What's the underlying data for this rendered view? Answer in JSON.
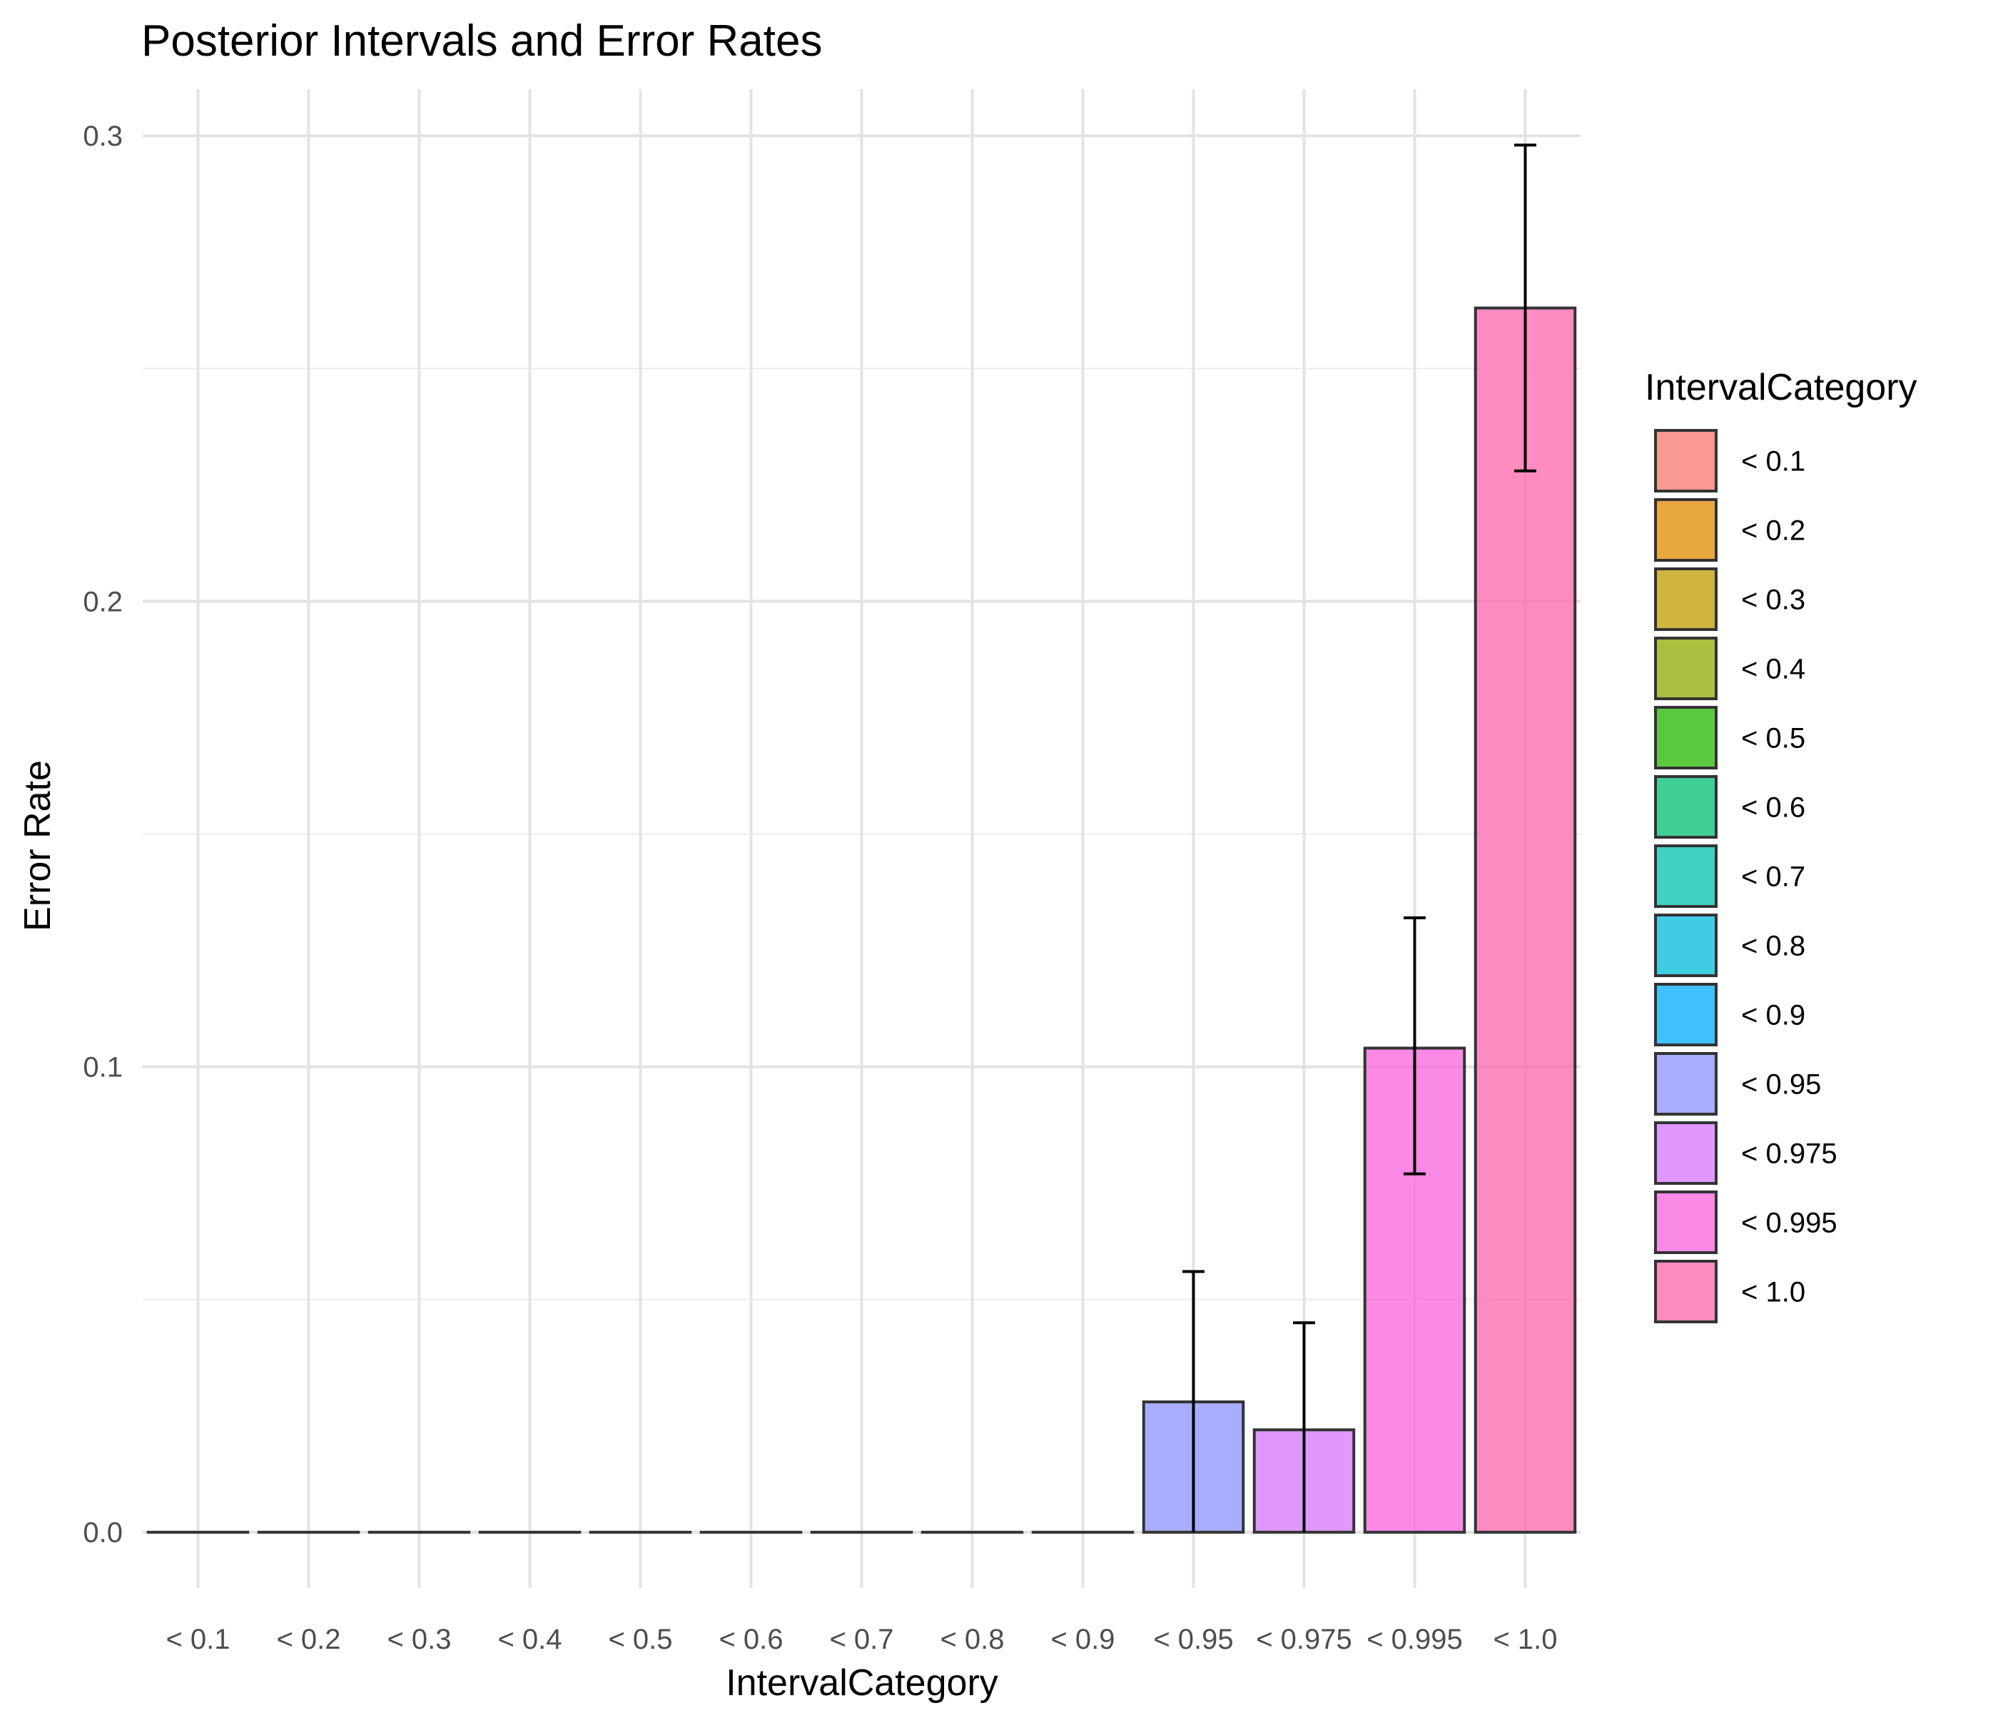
{
  "chart_data": {
    "type": "bar",
    "title": "Posterior Intervals and Error Rates",
    "xlabel": "IntervalCategory",
    "ylabel": "Error Rate",
    "categories": [
      "< 0.1",
      "< 0.2",
      "< 0.3",
      "< 0.4",
      "< 0.5",
      "< 0.6",
      "< 0.7",
      "< 0.8",
      "< 0.9",
      "< 0.95",
      "< 0.975",
      "< 0.995",
      "< 1.0"
    ],
    "values": [
      0,
      0,
      0,
      0,
      0,
      0,
      0,
      0,
      0,
      0.028,
      0.022,
      0.104,
      0.263
    ],
    "error_upper": [
      0,
      0,
      0,
      0,
      0,
      0,
      0,
      0,
      0,
      0.056,
      0.045,
      0.132,
      0.298
    ],
    "error_lower": [
      0,
      0,
      0,
      0,
      0,
      0,
      0,
      0,
      0,
      0.0,
      0.0,
      0.077,
      0.228
    ],
    "colors": [
      "#F8766D",
      "#E18A00",
      "#BE9C00",
      "#8CAB00",
      "#24B700",
      "#00BE70",
      "#00C1AB",
      "#00BBDA",
      "#00ACFC",
      "#8B93FF",
      "#D575FE",
      "#F962DD",
      "#FF65AC"
    ],
    "ylim": [
      -0.012,
      0.31
    ],
    "yticks": [
      0.0,
      0.1,
      0.2,
      0.3
    ],
    "ytick_labels": [
      "0.0",
      "0.1",
      "0.2",
      "0.3"
    ],
    "legend": {
      "title": "IntervalCategory",
      "position": "right",
      "entries": [
        "< 0.1",
        "< 0.2",
        "< 0.3",
        "< 0.4",
        "< 0.5",
        "< 0.6",
        "< 0.7",
        "< 0.8",
        "< 0.9",
        "< 0.95",
        "< 0.975",
        "< 0.995",
        "< 1.0"
      ]
    },
    "grid": true
  }
}
